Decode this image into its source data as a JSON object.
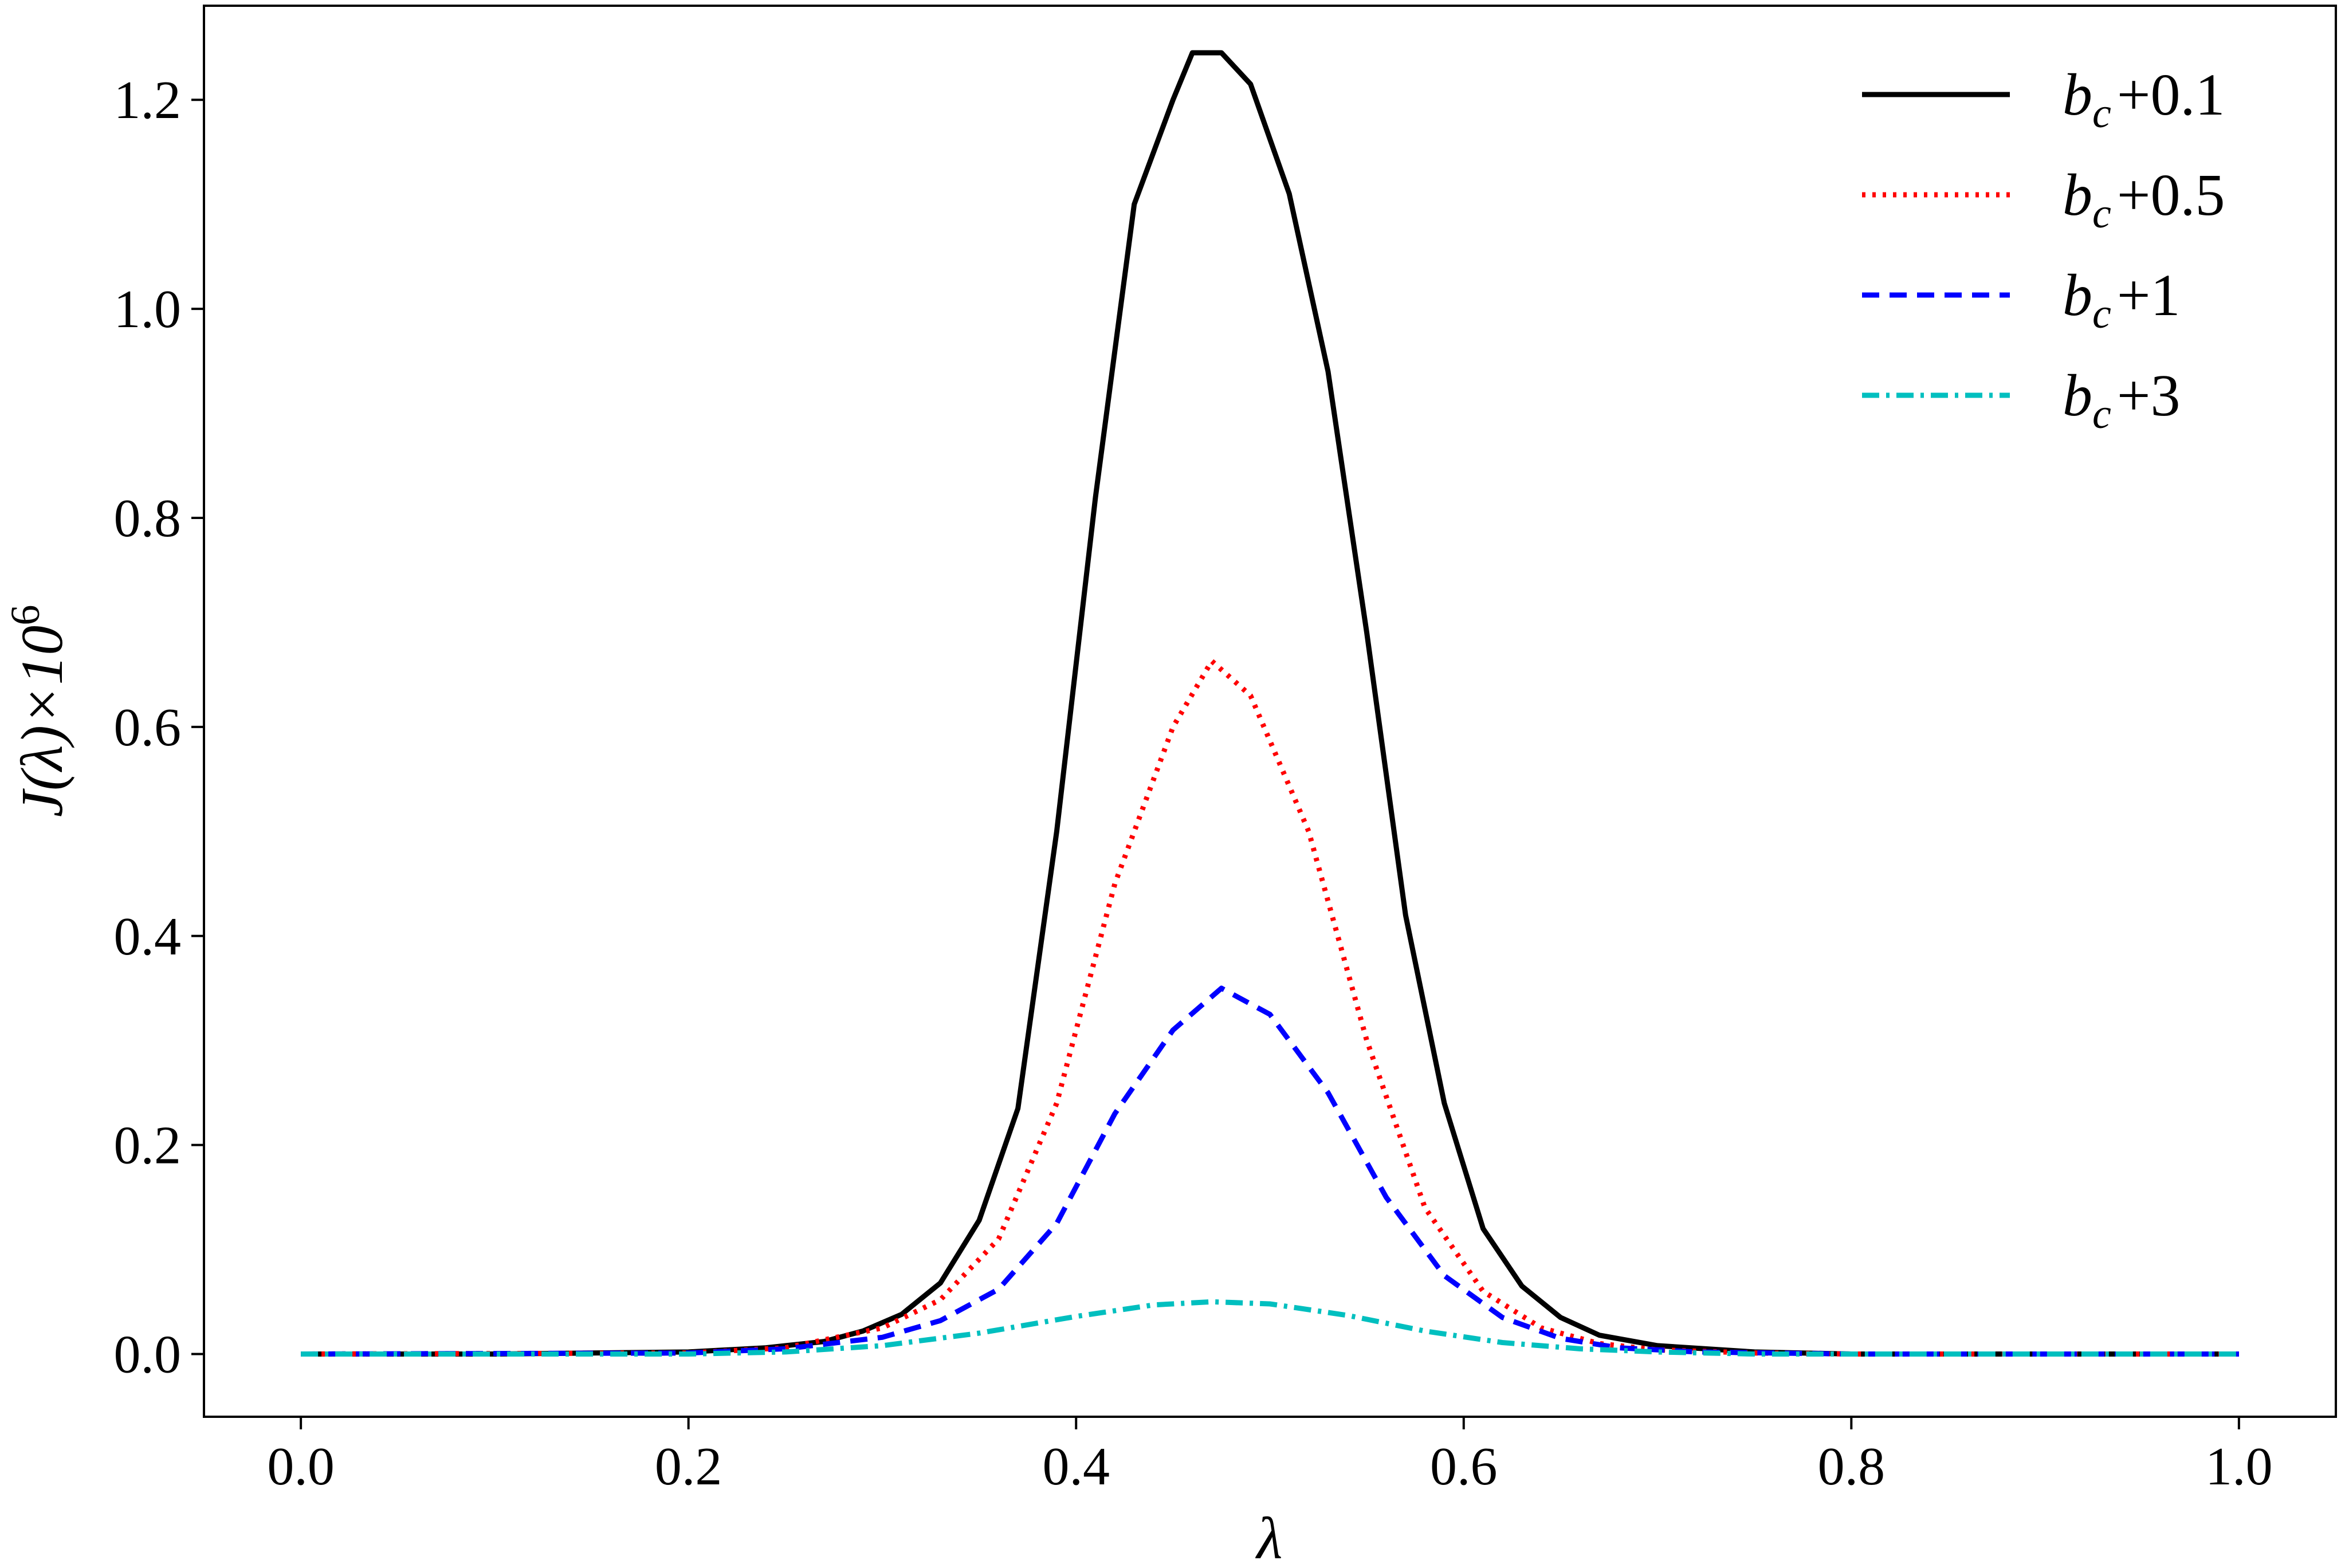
{
  "chart_data": {
    "type": "line",
    "title": "",
    "xlabel": "λ",
    "ylabel": "J(λ)×10",
    "ylabel_exponent": "6",
    "xlim": [
      -0.05,
      1.05
    ],
    "ylim": [
      -0.06,
      1.29
    ],
    "grid": false,
    "legend_position": "top-right",
    "x_ticks": [
      {
        "value": 0.0,
        "label": "0.0"
      },
      {
        "value": 0.2,
        "label": "0.2"
      },
      {
        "value": 0.4,
        "label": "0.4"
      },
      {
        "value": 0.6,
        "label": "0.6"
      },
      {
        "value": 0.8,
        "label": "0.8"
      },
      {
        "value": 1.0,
        "label": "1.0"
      }
    ],
    "y_ticks": [
      {
        "value": 0.0,
        "label": "0.0"
      },
      {
        "value": 0.2,
        "label": "0.2"
      },
      {
        "value": 0.4,
        "label": "0.4"
      },
      {
        "value": 0.6,
        "label": "0.6"
      },
      {
        "value": 0.8,
        "label": "0.8"
      },
      {
        "value": 1.0,
        "label": "1.0"
      },
      {
        "value": 1.2,
        "label": "1.2"
      }
    ],
    "series": [
      {
        "name": "b_c+0.1",
        "name_parts": {
          "var": "b",
          "sub": "c",
          "rest": "+0.1"
        },
        "color": "#000000",
        "style": "solid",
        "x": [
          0.0,
          0.1,
          0.2,
          0.24,
          0.27,
          0.29,
          0.31,
          0.33,
          0.35,
          0.37,
          0.39,
          0.41,
          0.43,
          0.45,
          0.46,
          0.475,
          0.49,
          0.51,
          0.53,
          0.55,
          0.57,
          0.59,
          0.61,
          0.63,
          0.65,
          0.67,
          0.7,
          0.75,
          0.8,
          1.0
        ],
        "y": [
          0.0,
          0.0,
          0.002,
          0.006,
          0.012,
          0.022,
          0.038,
          0.068,
          0.128,
          0.235,
          0.5,
          0.82,
          1.1,
          1.2,
          1.245,
          1.245,
          1.215,
          1.11,
          0.94,
          0.69,
          0.42,
          0.24,
          0.12,
          0.065,
          0.035,
          0.018,
          0.008,
          0.002,
          0.0,
          0.0
        ]
      },
      {
        "name": "b_c+0.5",
        "name_parts": {
          "var": "b",
          "sub": "c",
          "rest": "+0.5"
        },
        "color": "#ff0000",
        "style": "dotted",
        "x": [
          0.0,
          0.2,
          0.25,
          0.3,
          0.33,
          0.36,
          0.39,
          0.42,
          0.45,
          0.47,
          0.49,
          0.52,
          0.55,
          0.58,
          0.61,
          0.64,
          0.67,
          0.7,
          0.75,
          0.8,
          1.0
        ],
        "y": [
          0.0,
          0.001,
          0.006,
          0.025,
          0.052,
          0.11,
          0.24,
          0.45,
          0.6,
          0.663,
          0.63,
          0.5,
          0.3,
          0.14,
          0.06,
          0.025,
          0.01,
          0.004,
          0.001,
          0.0,
          0.0
        ]
      },
      {
        "name": "b_c+1",
        "name_parts": {
          "var": "b",
          "sub": "c",
          "rest": "+1"
        },
        "color": "#0000ff",
        "style": "dashed",
        "x": [
          0.0,
          0.2,
          0.25,
          0.3,
          0.33,
          0.36,
          0.39,
          0.42,
          0.45,
          0.475,
          0.5,
          0.53,
          0.56,
          0.59,
          0.62,
          0.65,
          0.68,
          0.72,
          0.8,
          1.0
        ],
        "y": [
          0.0,
          0.001,
          0.005,
          0.016,
          0.032,
          0.062,
          0.125,
          0.23,
          0.31,
          0.35,
          0.325,
          0.25,
          0.15,
          0.075,
          0.035,
          0.015,
          0.006,
          0.002,
          0.0,
          0.0
        ]
      },
      {
        "name": "b_c+3",
        "name_parts": {
          "var": "b",
          "sub": "c",
          "rest": "+3"
        },
        "color": "#00bfbf",
        "style": "dashdot",
        "x": [
          0.0,
          0.2,
          0.25,
          0.3,
          0.35,
          0.4,
          0.44,
          0.47,
          0.5,
          0.54,
          0.58,
          0.62,
          0.66,
          0.7,
          0.75,
          0.8,
          1.0
        ],
        "y": [
          0.0,
          0.0,
          0.002,
          0.008,
          0.02,
          0.036,
          0.047,
          0.05,
          0.048,
          0.037,
          0.022,
          0.011,
          0.005,
          0.002,
          0.0,
          0.0,
          0.0
        ]
      }
    ]
  }
}
